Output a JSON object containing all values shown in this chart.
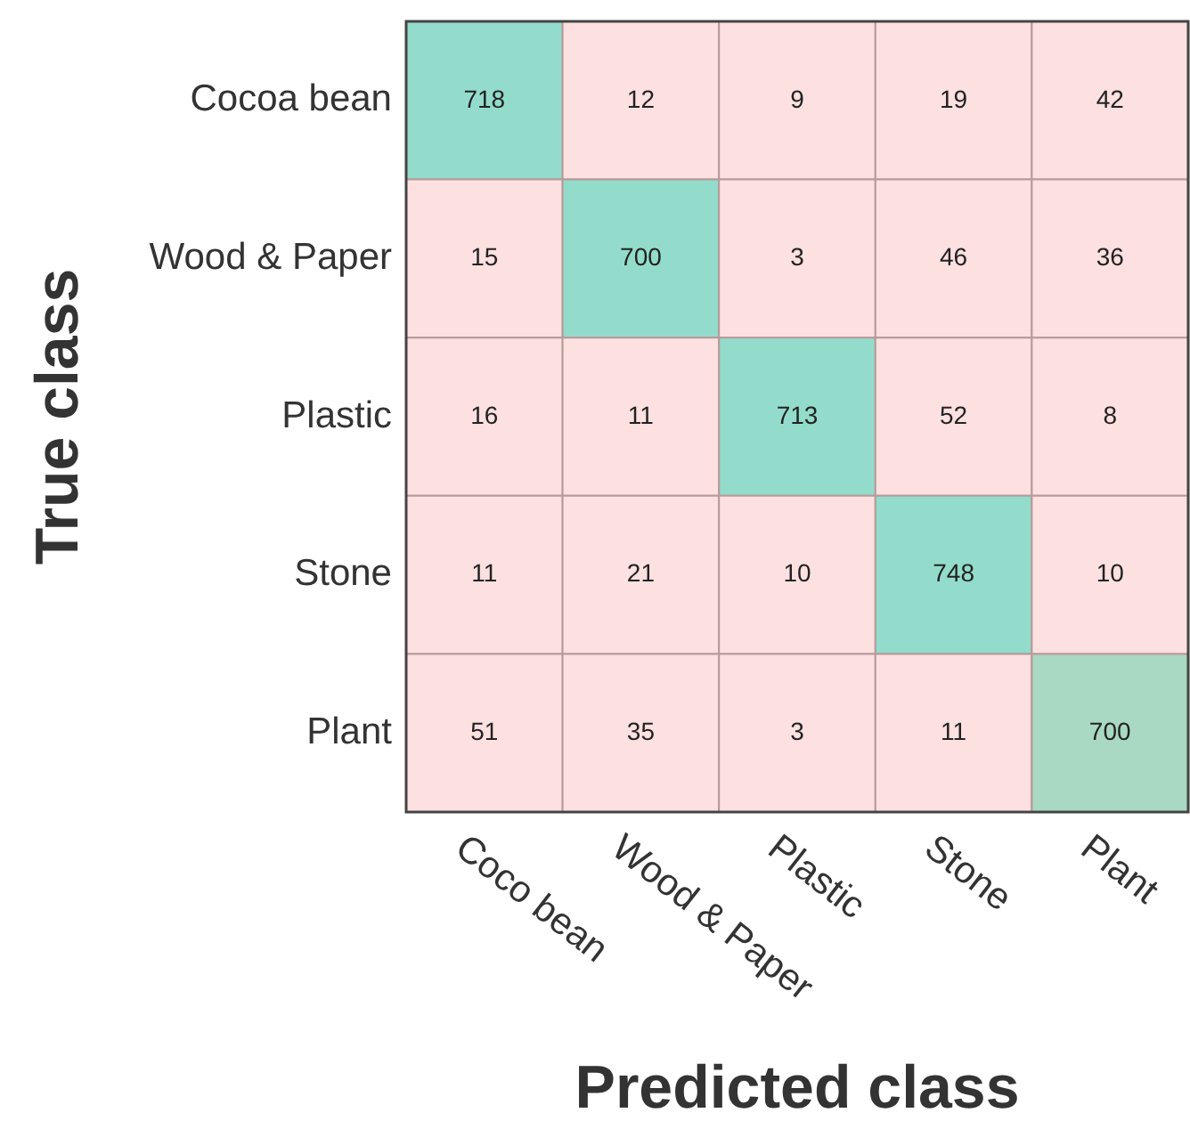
{
  "chart_data": {
    "type": "heatmap",
    "xlabel": "Predicted class",
    "ylabel": "True class",
    "categories": [
      "Coco bean",
      "Wood & Paper",
      "Plastic",
      "Stone",
      "Plant"
    ],
    "y_categories": [
      "Cocoa bean",
      "Wood & Paper",
      "Plastic",
      "Stone",
      "Plant"
    ],
    "cells": [
      [
        718,
        12,
        9,
        19,
        42
      ],
      [
        15,
        700,
        3,
        46,
        36
      ],
      [
        16,
        11,
        713,
        52,
        8
      ],
      [
        11,
        21,
        10,
        748,
        10
      ],
      [
        51,
        35,
        3,
        11,
        700
      ]
    ],
    "colors": [
      [
        "#93dccb",
        "#fde0e0",
        "#fde0e0",
        "#fde0e0",
        "#fde0e0"
      ],
      [
        "#fde0e0",
        "#93dccb",
        "#fde0e0",
        "#fde0e0",
        "#fde0e0"
      ],
      [
        "#fde0e0",
        "#fde0e0",
        "#93dccb",
        "#fde0e0",
        "#fde0e0"
      ],
      [
        "#fde0e0",
        "#fde0e0",
        "#fde0e0",
        "#93dccb",
        "#fde0e0"
      ],
      [
        "#fde0e0",
        "#fde0e0",
        "#fde0e0",
        "#fde0e0",
        "#a9d8c3"
      ]
    ],
    "data_labels": true
  }
}
